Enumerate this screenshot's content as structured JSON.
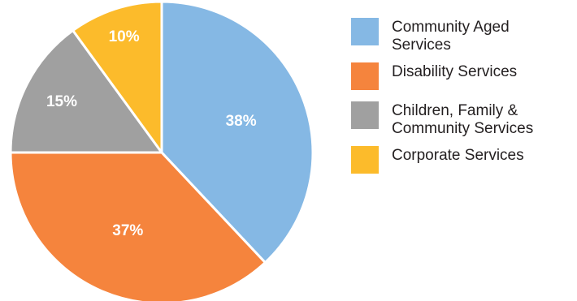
{
  "chart_data": {
    "type": "pie",
    "categories": [
      "Community Aged Services",
      "Disability Services",
      "Children, Family & Community Services",
      "Corporate Services"
    ],
    "values": [
      38,
      37,
      15,
      10
    ],
    "labels": [
      "38%",
      "37%",
      "15%",
      "10%"
    ],
    "colors": [
      "#85b8e4",
      "#f5843d",
      "#a0a0a0",
      "#fcbb2b"
    ],
    "start": "12 o'clock",
    "direction": "clockwise",
    "legend_position": "right"
  }
}
